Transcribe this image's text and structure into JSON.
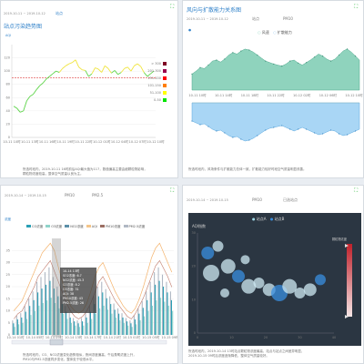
{
  "panel1": {
    "title": "站点污染趋势图",
    "date_range": "2019-10-11 ~ 2019-10-12",
    "control": "站点",
    "aqi_label": "AQI",
    "note_line1": "所选时段内，2019-10-11 16时前后AQI最大值为117，数值偏高主要由细颗粒物影响，",
    "note_line2": "颗粒物浓度较高，整体空气质量以良为主。",
    "legend": [
      {
        "label": "> 300",
        "color": "#7e0023"
      },
      {
        "label": "201-300",
        "color": "#99004c"
      },
      {
        "label": "151-200",
        "color": "#ff0000"
      },
      {
        "label": "101-150",
        "color": "#ff7e00"
      },
      {
        "label": "51-100",
        "color": "#ffff00"
      },
      {
        "label": "0-50",
        "color": "#00e400"
      }
    ],
    "chart_data": {
      "type": "line",
      "ylim": [
        0,
        140
      ],
      "y_ticks": [
        "0",
        "20",
        "40",
        "60",
        "80",
        "100",
        "120"
      ],
      "x_ticks": [
        "10-11 10时",
        "10-11 13时",
        "10-11 16时",
        "10-11 19时",
        "10-11 22时",
        "10-12 01时",
        "10-12 04时",
        "10-12 07时",
        "10-12 10时"
      ],
      "values": [
        47,
        44,
        38,
        40,
        55,
        62,
        65,
        72,
        78,
        82,
        88,
        92,
        96,
        100,
        98,
        104,
        108,
        111,
        113,
        117,
        106,
        102,
        101,
        92,
        96,
        105,
        103,
        98,
        108,
        104,
        97,
        101,
        95,
        98,
        104,
        106,
        100,
        108,
        111,
        107,
        98,
        92,
        96,
        100
      ],
      "reference_line": 90
    }
  },
  "panel2": {
    "title": "风向与扩散能力关系图",
    "date_range": "2019-10-11 ~ 2019-10-12",
    "control": "站点",
    "control2": "PM10",
    "legend": [
      "风速",
      "扩散能力"
    ],
    "legend_colors": [
      "#7fcfb4",
      "#8fc6ef"
    ],
    "note": "所选时段内，风场条件与扩散能力总体一致，扩散能力较好时段空气质量明显改善。",
    "chart_data": {
      "type": "area",
      "x_ticks": [
        "10-11 10时",
        "10-11 14时",
        "10-11 18时",
        "10-11 22时",
        "10-12 02时",
        "10-12 06时",
        "10-12 10时"
      ],
      "top_series": [
        32,
        38,
        45,
        43,
        50,
        58,
        60,
        56,
        62,
        70,
        75,
        72,
        78,
        82,
        80,
        76,
        70,
        64,
        58,
        55,
        52,
        50,
        48,
        52,
        58,
        60,
        54,
        50,
        55,
        60,
        66,
        72,
        68,
        62,
        58,
        62,
        70,
        78,
        82,
        76,
        68,
        60
      ],
      "bottom_series": [
        40,
        44,
        48,
        46,
        52,
        58,
        62,
        60,
        66,
        72,
        76,
        74,
        80,
        84,
        82,
        78,
        72,
        66,
        60,
        56,
        54,
        52,
        50,
        54,
        58,
        62,
        58,
        54,
        58,
        62,
        66,
        70,
        68,
        64,
        60,
        62,
        68,
        72,
        70,
        66,
        62,
        58
      ]
    }
  },
  "panel3": {
    "date_range": "2019-10-14 ~ 2019-10-15",
    "control": "PM10",
    "control2": "PM2.5",
    "legend": [
      {
        "label": "CO浓度",
        "color": "#2a9fb5"
      },
      {
        "label": "O3浓度",
        "color": "#8fd3c9"
      },
      {
        "label": "NO2浓度",
        "color": "#5b8fa8"
      },
      {
        "label": "AQI",
        "color": "#f4c58a"
      },
      {
        "label": "PM10浓度",
        "color": "#9b6e63"
      },
      {
        "label": "PM2.5浓度",
        "color": "#b0b8c4"
      }
    ],
    "tooltip": {
      "title": "10-14 13时",
      "rows": [
        "SO2浓度: 6.7",
        "NO2浓度: 45.3",
        "CO浓度: 8.2",
        "O3浓度: 31",
        "AQI: 38",
        "PM10浓度: 43",
        "PM2.5浓度: 26"
      ]
    },
    "note_line1": "所选时段内，CO、NO2浓度变化趋势相似，夜间浓度偏高，午后臭氧浓度上升，",
    "note_line2": "PM10与PM2.5浓度同步变化，整体处于较低水平。",
    "chart_data": {
      "type": "bar",
      "ylim": [
        0,
        40
      ],
      "y_ticks": [
        "0",
        "5",
        "10",
        "15",
        "20",
        "25",
        "30",
        "35"
      ],
      "x_ticks": [
        "10-14 01时",
        "10-14 05时",
        "10-14 09时",
        "10-14 13时",
        "10-14 17时",
        "10-14 21时",
        "10-15 01时",
        "10-15 05时",
        "10-15 09时"
      ],
      "aqi": [
        10,
        12,
        14,
        18,
        22,
        26,
        30,
        34,
        36,
        38,
        35,
        28,
        22,
        16,
        12,
        10,
        9,
        10,
        13,
        18,
        24,
        28,
        30,
        26,
        22,
        18,
        15,
        12,
        10,
        9,
        11,
        15,
        20,
        26,
        32,
        36,
        38,
        34,
        30,
        26
      ],
      "pm10": [
        6,
        8,
        9,
        12,
        15,
        18,
        22,
        24,
        26,
        28,
        24,
        20,
        16,
        12,
        9,
        7,
        6,
        7,
        9,
        12,
        16,
        20,
        22,
        19,
        16,
        13,
        11,
        9,
        7,
        6,
        8,
        11,
        14,
        18,
        22,
        26,
        28,
        25,
        22,
        18
      ]
    }
  },
  "panel4": {
    "date_range": "2019-10-14 ~ 2019-10-15",
    "control": "PM10",
    "control2": "已选站点",
    "legend": [
      "站点A",
      "站点B"
    ],
    "chart_title": "AQI指数",
    "scale_title": "颗粒物浓度",
    "note_line1": "所选时段内，2019-10-14 13时站点颗粒物浓度最高，站点与站点之间差异明显，",
    "note_line2": "2019-10-15 09时后浓度逐渐降低，整体空气质量较好。",
    "chart_data": {
      "type": "scatter",
      "xlim": [
        0,
        40
      ],
      "ylim": [
        0,
        30
      ],
      "x_ticks": [
        "0",
        "10",
        "20",
        "30",
        "40"
      ],
      "y_ticks": [
        "0",
        "10",
        "20",
        "30"
      ],
      "points": [
        {
          "x": 3,
          "y": 24,
          "r": 7
        },
        {
          "x": 4,
          "y": 18,
          "r": 9
        },
        {
          "x": 6,
          "y": 26,
          "r": 6
        },
        {
          "x": 9,
          "y": 20,
          "r": 8
        },
        {
          "x": 12,
          "y": 17,
          "r": 7
        },
        {
          "x": 15,
          "y": 14,
          "r": 8
        },
        {
          "x": 18,
          "y": 15,
          "r": 6
        },
        {
          "x": 21,
          "y": 13,
          "r": 7
        },
        {
          "x": 24,
          "y": 12,
          "r": 9
        },
        {
          "x": 27,
          "y": 14,
          "r": 8
        },
        {
          "x": 30,
          "y": 12,
          "r": 6
        },
        {
          "x": 33,
          "y": 13,
          "r": 7
        },
        {
          "x": 36,
          "y": 16,
          "r": 6
        },
        {
          "x": 8,
          "y": 12,
          "r": 5
        },
        {
          "x": 14,
          "y": 22,
          "r": 5
        }
      ]
    }
  }
}
